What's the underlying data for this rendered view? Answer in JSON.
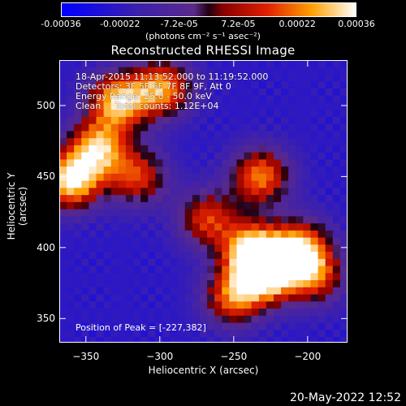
{
  "colorbar": {
    "ticks": [
      "-0.00036",
      "-0.00022",
      "-7.2e-05",
      "7.2e-05",
      "0.00022",
      "0.00036"
    ],
    "units": "(photons cm⁻² s⁻¹ asec⁻²)"
  },
  "title": "Reconstructed RHESSI Image",
  "annotations": {
    "time": "18-Apr-2015 11:13:52.000 to 11:19:52.000",
    "detectors": "Detectors: 3F 5F 6F 7F 8F 9F, Att 0",
    "energy": "Energy Range: 25.0 - 50.0 keV",
    "clean": "Clean     Total counts: 1.12E+04"
  },
  "peak_label": "Position of Peak = [-227,382]",
  "date_stamp": "20-May-2022 12:52",
  "chart_data": {
    "type": "heatmap",
    "title": "Reconstructed RHESSI Image",
    "xlabel": "Heliocentric X (arcsec)",
    "ylabel": "Heliocentric Y (arcsec)",
    "xlim": [
      -368,
      -173
    ],
    "ylim": [
      333,
      532
    ],
    "x_ticks": [
      -350,
      -300,
      -250,
      -200
    ],
    "y_ticks": [
      350,
      400,
      450,
      500
    ],
    "colorbar_range": [
      -0.00036,
      0.00036
    ],
    "colormap": "blue-purple-red-yellow-white",
    "peak_position": [
      -227,
      382
    ],
    "sources": [
      {
        "x": -328,
        "y": 503,
        "intensity": 0.0003
      },
      {
        "x": -342,
        "y": 470,
        "intensity": 0.00026
      },
      {
        "x": -360,
        "y": 447,
        "intensity": 0.00034
      },
      {
        "x": -298,
        "y": 512,
        "intensity": 0.00024
      },
      {
        "x": -315,
        "y": 450,
        "intensity": 0.00014
      },
      {
        "x": -238,
        "y": 398,
        "intensity": 0.0003
      },
      {
        "x": -227,
        "y": 382,
        "intensity": 0.00036
      },
      {
        "x": -205,
        "y": 400,
        "intensity": 0.00024
      },
      {
        "x": -250,
        "y": 365,
        "intensity": 0.0002
      },
      {
        "x": -232,
        "y": 450,
        "intensity": 0.00022
      },
      {
        "x": -268,
        "y": 420,
        "intensity": 0.00014
      },
      {
        "x": -195,
        "y": 380,
        "intensity": 0.00014
      }
    ]
  }
}
